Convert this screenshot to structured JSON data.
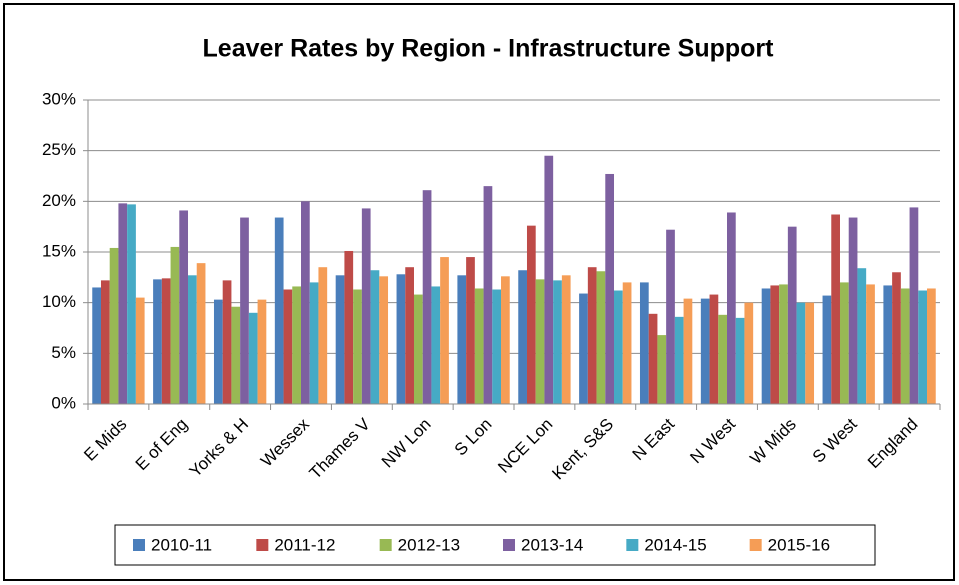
{
  "chart_data": {
    "type": "bar",
    "title": "Leaver Rates by Region - Infrastructure Support",
    "categories": [
      "E Mids",
      "E of Eng",
      "Yorks & H",
      "Wessex",
      "Thames V",
      "NW Lon",
      "S Lon",
      "NCE Lon",
      "Kent, S&S",
      "N East",
      "N West",
      "W Mids",
      "S West",
      "England"
    ],
    "series": [
      {
        "name": "2010-11",
        "color": "#4a7ebb",
        "values": [
          11.5,
          12.3,
          10.3,
          18.4,
          12.7,
          12.8,
          12.7,
          13.2,
          10.9,
          12.0,
          10.4,
          11.4,
          10.7,
          11.7
        ]
      },
      {
        "name": "2011-12",
        "color": "#be4b48",
        "values": [
          12.2,
          12.4,
          12.2,
          11.3,
          15.1,
          13.5,
          14.5,
          17.6,
          13.5,
          8.9,
          10.8,
          11.7,
          18.7,
          13.0
        ]
      },
      {
        "name": "2012-13",
        "color": "#98b954",
        "values": [
          15.4,
          15.5,
          9.6,
          11.6,
          11.3,
          10.8,
          11.4,
          12.3,
          13.1,
          6.8,
          8.8,
          11.8,
          12.0,
          11.4
        ]
      },
      {
        "name": "2013-14",
        "color": "#7d60a0",
        "values": [
          19.8,
          19.1,
          18.4,
          20.0,
          19.3,
          21.1,
          21.5,
          24.5,
          22.7,
          17.2,
          18.9,
          17.5,
          18.4,
          19.4
        ]
      },
      {
        "name": "2014-15",
        "color": "#46aac5",
        "values": [
          19.7,
          12.7,
          9.0,
          12.0,
          13.2,
          11.6,
          11.3,
          12.2,
          11.2,
          8.6,
          8.5,
          10.0,
          13.4,
          11.2
        ]
      },
      {
        "name": "2015-16",
        "color": "#f59d56",
        "values": [
          10.5,
          13.9,
          10.3,
          13.5,
          12.6,
          14.5,
          12.6,
          12.7,
          12.0,
          10.4,
          10.0,
          10.0,
          11.8,
          11.4
        ]
      }
    ],
    "ylim": [
      0,
      30
    ],
    "yticks": [
      {
        "value": 0,
        "label": "0%"
      },
      {
        "value": 5,
        "label": "5%"
      },
      {
        "value": 10,
        "label": "10%"
      },
      {
        "value": 15,
        "label": "15%"
      },
      {
        "value": 20,
        "label": "20%"
      },
      {
        "value": 25,
        "label": "25%"
      },
      {
        "value": 30,
        "label": "30%"
      }
    ],
    "grid": true,
    "legend": "bottom"
  }
}
